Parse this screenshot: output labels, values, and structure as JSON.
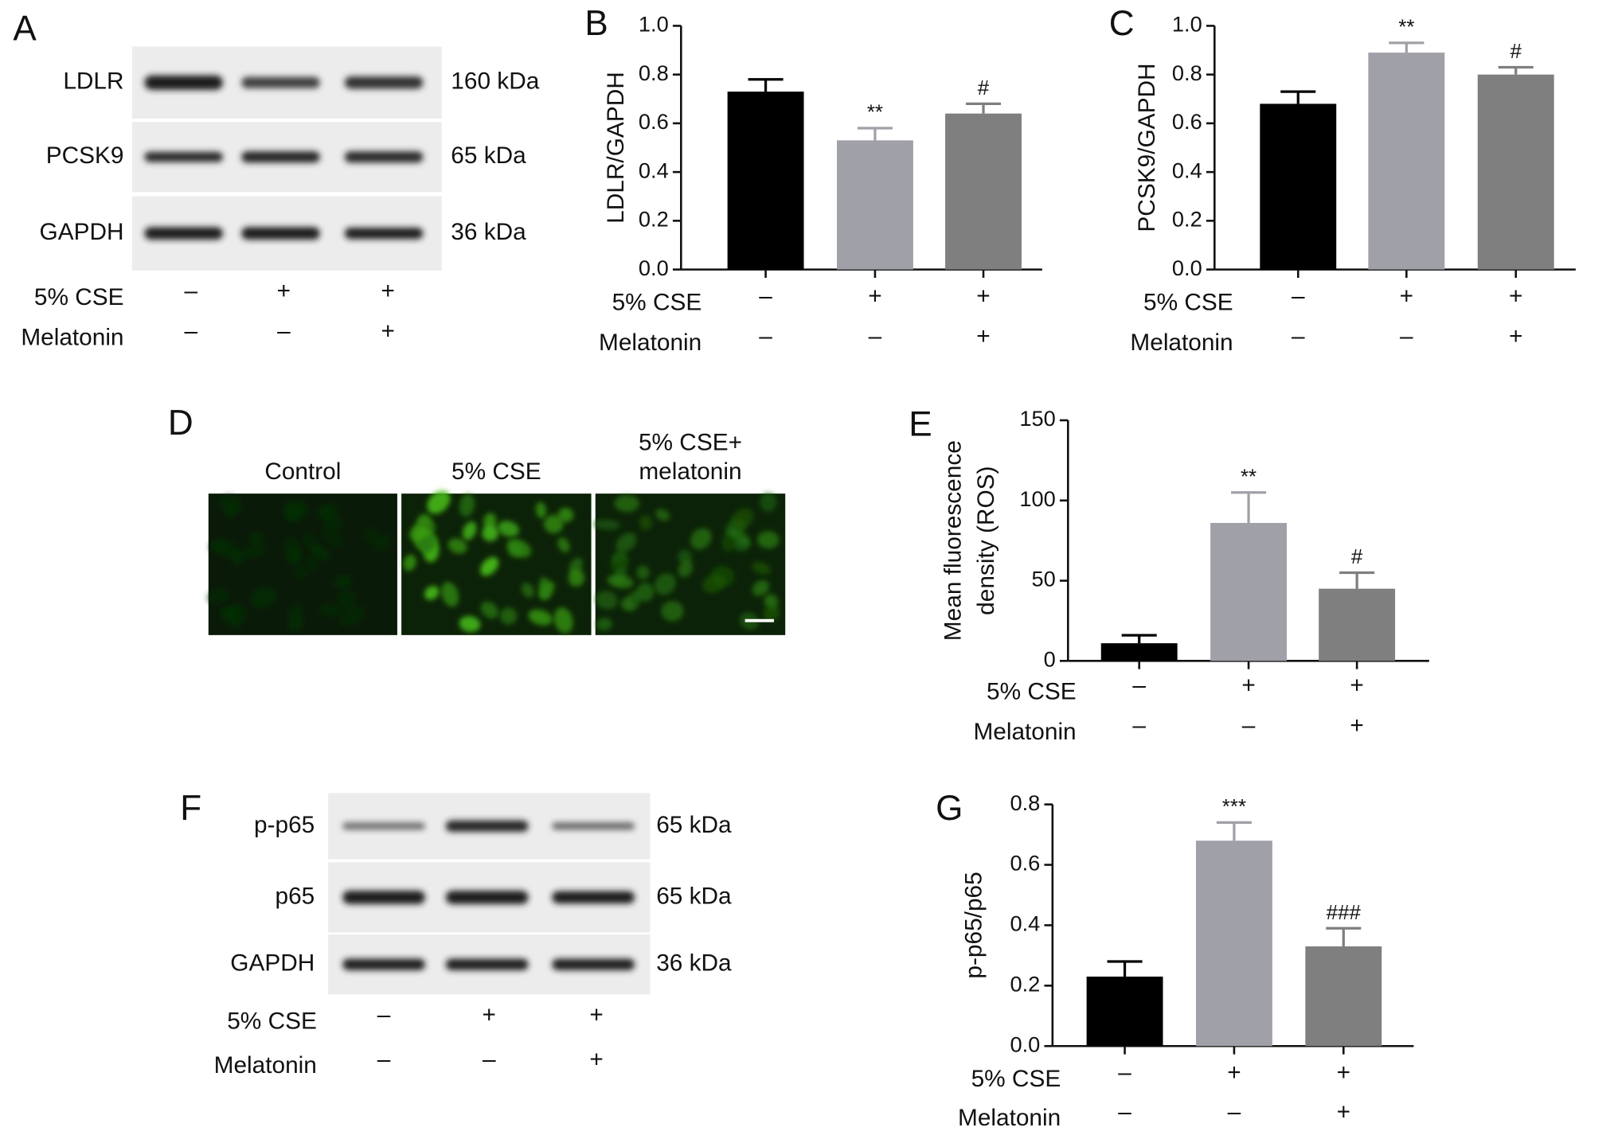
{
  "chart_data": [
    {
      "type": "bar",
      "panel": "B",
      "ylabel": "LDLR/GAPDH",
      "values": [
        0.73,
        0.53,
        0.64
      ],
      "errors": [
        0.05,
        0.05,
        0.04
      ],
      "colors": [
        "#000000",
        "#a0a0a8",
        "#7f7f7f"
      ],
      "annotations": [
        null,
        "**",
        "#"
      ],
      "ylim": [
        0,
        1
      ],
      "yticks": [
        {
          "value": 0,
          "label": "0.0"
        },
        0.2,
        0.4,
        0.6,
        0.8,
        {
          "value": 1,
          "label": "1.0"
        }
      ],
      "conditions": [
        {
          "label": "5% CSE",
          "signs": [
            "–",
            "+",
            "+"
          ]
        },
        {
          "label": "Melatonin",
          "signs": [
            "–",
            "–",
            "+"
          ]
        }
      ]
    },
    {
      "type": "bar",
      "panel": "C",
      "ylabel": "PCSK9/GAPDH",
      "values": [
        0.68,
        0.89,
        0.8
      ],
      "errors": [
        0.05,
        0.04,
        0.03
      ],
      "colors": [
        "#000000",
        "#a0a0a8",
        "#7f7f7f"
      ],
      "annotations": [
        null,
        "**",
        "#"
      ],
      "ylim": [
        0,
        1
      ],
      "yticks": [
        {
          "value": 0,
          "label": "0.0"
        },
        0.2,
        0.4,
        0.6,
        0.8,
        {
          "value": 1,
          "label": "1.0"
        }
      ],
      "conditions": [
        {
          "label": "5% CSE",
          "signs": [
            "–",
            "+",
            "+"
          ]
        },
        {
          "label": "Melatonin",
          "signs": [
            "–",
            "–",
            "+"
          ]
        }
      ]
    },
    {
      "type": "bar",
      "panel": "E",
      "ylabel": [
        "Mean fluorescence",
        "density (ROS)"
      ],
      "values": [
        11,
        86,
        45
      ],
      "errors": [
        5,
        19,
        10
      ],
      "colors": [
        "#000000",
        "#a0a0a8",
        "#7f7f7f"
      ],
      "annotations": [
        null,
        "**",
        "#"
      ],
      "ylim": [
        0,
        150
      ],
      "yticks": [
        0,
        50,
        100,
        150
      ],
      "conditions": [
        {
          "label": "5% CSE",
          "signs": [
            "–",
            "+",
            "+"
          ]
        },
        {
          "label": "Melatonin",
          "signs": [
            "–",
            "–",
            "+"
          ]
        }
      ]
    },
    {
      "type": "bar",
      "panel": "G",
      "ylabel": "p-p65/p65",
      "values": [
        0.23,
        0.68,
        0.33
      ],
      "errors": [
        0.05,
        0.06,
        0.06
      ],
      "colors": [
        "#000000",
        "#a0a0a8",
        "#7f7f7f"
      ],
      "annotations": [
        null,
        "***",
        "###"
      ],
      "ylim": [
        0,
        0.8
      ],
      "yticks": [
        {
          "value": 0,
          "label": "0.0"
        },
        0.2,
        0.4,
        0.6,
        0.8
      ],
      "conditions": [
        {
          "label": "5% CSE",
          "signs": [
            "–",
            "+",
            "+"
          ]
        },
        {
          "label": "Melatonin",
          "signs": [
            "–",
            "–",
            "+"
          ]
        }
      ]
    }
  ],
  "blots": [
    {
      "panel": "A",
      "rows": [
        {
          "label": "LDLR",
          "size": "160 kDa"
        },
        {
          "label": "PCSK9",
          "size": "65 kDa"
        },
        {
          "label": "GAPDH",
          "size": "36 kDa"
        }
      ],
      "conditions": [
        {
          "label": "5% CSE",
          "signs": [
            "–",
            "+",
            "+"
          ]
        },
        {
          "label": "Melatonin",
          "signs": [
            "–",
            "–",
            "+"
          ]
        }
      ]
    },
    {
      "panel": "F",
      "rows": [
        {
          "label": "p-p65",
          "size": "65 kDa"
        },
        {
          "label": "p65",
          "size": "65 kDa"
        },
        {
          "label": "GAPDH",
          "size": "36 kDa"
        }
      ],
      "conditions": [
        {
          "label": "5% CSE",
          "signs": [
            "–",
            "+",
            "+"
          ]
        },
        {
          "label": "Melatonin",
          "signs": [
            "–",
            "–",
            "+"
          ]
        }
      ]
    }
  ],
  "micrographs": {
    "panel": "D",
    "labels": [
      [
        "Control"
      ],
      [
        "5% CSE"
      ],
      [
        "5% CSE+",
        "melatonin"
      ]
    ]
  }
}
